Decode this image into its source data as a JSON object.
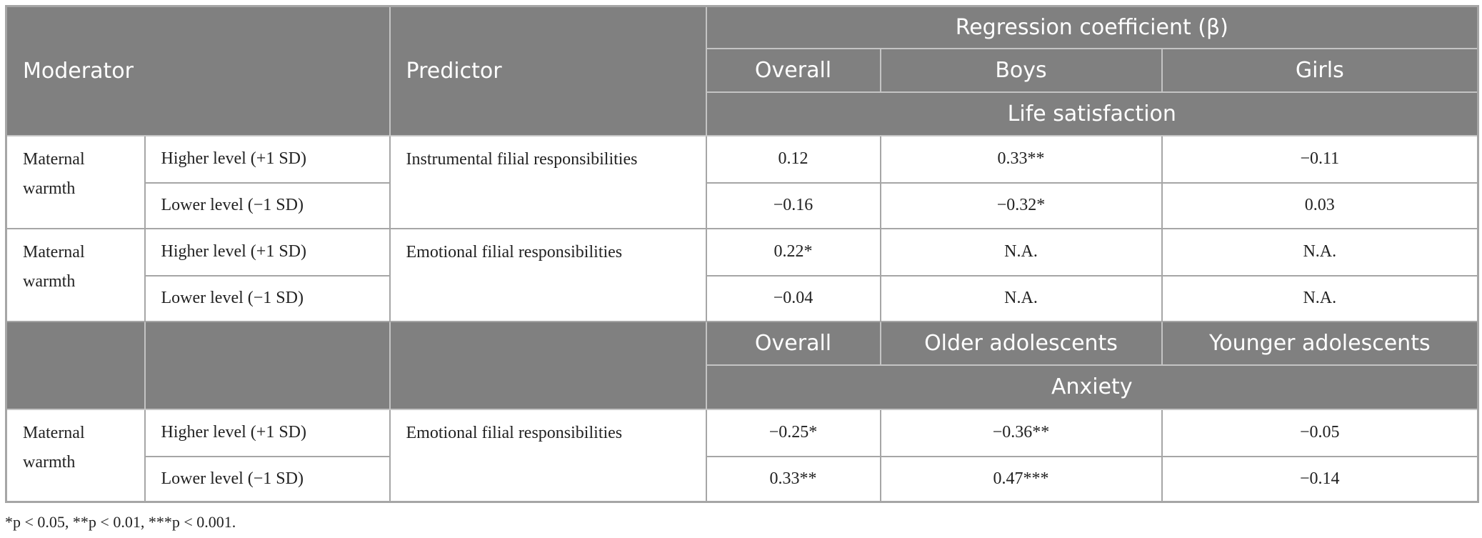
{
  "table": {
    "moderator_label": "Moderator",
    "predictor_label": "Predictor",
    "coef_label": "Regression coefficient (β)",
    "panels": [
      {
        "groups": [
          "Overall",
          "Boys",
          "Girls"
        ],
        "outcome": "Life satisfaction",
        "blocks": [
          {
            "moderator": "Maternal warmth",
            "predictor": "Instrumental filial responsibilities",
            "rows": [
              {
                "level": "Higher level (+1 SD)",
                "values": [
                  "0.12",
                  "0.33**",
                  "−0.11"
                ]
              },
              {
                "level": "Lower level (−1 SD)",
                "values": [
                  "−0.16",
                  "−0.32*",
                  "0.03"
                ]
              }
            ]
          },
          {
            "moderator": "Maternal warmth",
            "predictor": "Emotional filial responsibilities",
            "rows": [
              {
                "level": "Higher level (+1 SD)",
                "values": [
                  "0.22*",
                  "N.A.",
                  "N.A."
                ]
              },
              {
                "level": "Lower level (−1 SD)",
                "values": [
                  "−0.04",
                  "N.A.",
                  "N.A."
                ]
              }
            ]
          }
        ]
      },
      {
        "groups": [
          "Overall",
          "Older adolescents",
          "Younger adolescents"
        ],
        "outcome": "Anxiety",
        "blocks": [
          {
            "moderator": "Maternal warmth",
            "predictor": "Emotional filial responsibilities",
            "rows": [
              {
                "level": "Higher level (+1 SD)",
                "values": [
                  "−0.25*",
                  "−0.36**",
                  "−0.05"
                ]
              },
              {
                "level": "Lower level (−1 SD)",
                "values": [
                  "0.33**",
                  "0.47***",
                  "−0.14"
                ]
              }
            ]
          }
        ]
      }
    ]
  },
  "footnote": "*p < 0.05, **p < 0.01, ***p < 0.001."
}
